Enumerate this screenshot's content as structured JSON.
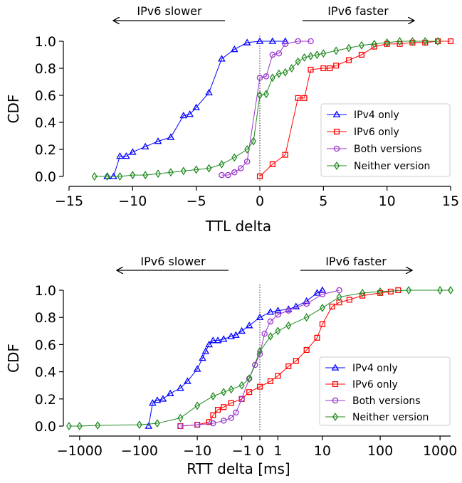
{
  "chart_data": [
    {
      "type": "line",
      "xlabel": "TTL delta",
      "ylabel": "CDF",
      "xlim": [
        -15,
        15
      ],
      "ylim": [
        0,
        1.0
      ],
      "xscale": "linear",
      "xticks": [
        -15,
        -10,
        -5,
        0,
        5,
        10,
        15
      ],
      "xtick_labels": [
        "−15",
        "−10",
        "−5",
        "0",
        "5",
        "10",
        "15"
      ],
      "yticks": [
        0.0,
        0.2,
        0.4,
        0.6,
        0.8,
        1.0
      ],
      "ytick_labels": [
        "0.0",
        "0.2",
        "0.4",
        "0.6",
        "0.8",
        "1.0"
      ],
      "reference_line_x": 0,
      "annotations": [
        {
          "text": "IPv6 slower",
          "arrow": "left"
        },
        {
          "text": "IPv6 faster",
          "arrow": "right"
        }
      ],
      "legend_position": "lower-right",
      "series": [
        {
          "name": "IPv4 only",
          "color": "#0000ff",
          "marker": "triangle",
          "x": [
            -12,
            -11.5,
            -11,
            -10.5,
            -10,
            -9,
            -8,
            -7,
            -6,
            -5.5,
            -5,
            -4,
            -3,
            -2,
            -1,
            0,
            1,
            2
          ],
          "y": [
            0.0,
            0.0,
            0.15,
            0.15,
            0.18,
            0.22,
            0.26,
            0.29,
            0.45,
            0.46,
            0.51,
            0.62,
            0.87,
            0.94,
            0.99,
            1.0,
            1.0,
            1.0
          ]
        },
        {
          "name": "IPv6 only",
          "color": "#ff0000",
          "marker": "square",
          "x": [
            0,
            1,
            2,
            3,
            3.5,
            4,
            5,
            5.5,
            6,
            7,
            8,
            9,
            10,
            11,
            12,
            13,
            14,
            15
          ],
          "y": [
            0.0,
            0.09,
            0.16,
            0.58,
            0.58,
            0.79,
            0.8,
            0.8,
            0.82,
            0.86,
            0.9,
            0.96,
            0.98,
            0.98,
            0.99,
            0.99,
            1.0,
            1.0
          ]
        },
        {
          "name": "Both versions",
          "color": "#9933cc",
          "marker": "circle",
          "x": [
            -3,
            -2.5,
            -2,
            -1.5,
            -1,
            0,
            0.5,
            1,
            1.5,
            2,
            3,
            4
          ],
          "y": [
            0.01,
            0.01,
            0.03,
            0.06,
            0.11,
            0.73,
            0.74,
            0.9,
            0.91,
            0.98,
            1.0,
            1.0
          ],
          "x_extra": [],
          "y_extra": []
        },
        {
          "name": "Neither version",
          "color": "#228b22",
          "marker": "diamond",
          "x": [
            -13,
            -12,
            -11,
            -10,
            -9,
            -8,
            -7,
            -6,
            -5,
            -4,
            -3,
            -2,
            -1,
            -0.5,
            0,
            0.5,
            1,
            1.5,
            2,
            2.5,
            3,
            3.5,
            4,
            4.5,
            5,
            6,
            7,
            8,
            9,
            10,
            11,
            12,
            13,
            14
          ],
          "y": [
            0.0,
            0.0,
            0.0,
            0.01,
            0.01,
            0.02,
            0.03,
            0.04,
            0.05,
            0.06,
            0.09,
            0.14,
            0.2,
            0.26,
            0.6,
            0.61,
            0.73,
            0.76,
            0.77,
            0.8,
            0.85,
            0.88,
            0.89,
            0.9,
            0.91,
            0.93,
            0.95,
            0.97,
            0.98,
            0.99,
            1.0,
            1.0,
            1.0,
            1.0
          ]
        }
      ]
    },
    {
      "type": "line",
      "xlabel": "RTT delta [ms]",
      "ylabel": "CDF",
      "xlim": [
        -1500,
        1500
      ],
      "ylim": [
        0,
        1.0
      ],
      "xscale": "symlog",
      "xticks": [
        -1000,
        -100,
        -10,
        -1,
        0,
        1,
        10,
        100,
        1000
      ],
      "xtick_labels": [
        "−1000",
        "−100",
        "−10",
        "−1",
        "0",
        "1",
        "10",
        "100",
        "1000"
      ],
      "yticks": [
        0.0,
        0.2,
        0.4,
        0.6,
        0.8,
        1.0
      ],
      "ytick_labels": [
        "0.0",
        "0.2",
        "0.4",
        "0.6",
        "0.8",
        "1.0"
      ],
      "reference_line_x": 0,
      "annotations": [
        {
          "text": "IPv6 slower",
          "arrow": "left"
        },
        {
          "text": "IPv6 faster",
          "arrow": "right"
        }
      ],
      "legend_position": "lower-right",
      "series": [
        {
          "name": "IPv4 only",
          "color": "#0000ff",
          "marker": "triangle",
          "x": [
            -70,
            -60,
            -50,
            -40,
            -30,
            -20,
            -15,
            -10,
            -8,
            -7,
            -6,
            -5,
            -4,
            -3,
            -2,
            -1.5,
            -1,
            -0.5,
            0,
            0.5,
            1,
            2,
            3,
            5,
            8,
            10
          ],
          "y": [
            0.0,
            0.17,
            0.19,
            0.2,
            0.24,
            0.28,
            0.33,
            0.42,
            0.5,
            0.55,
            0.6,
            0.63,
            0.63,
            0.64,
            0.66,
            0.67,
            0.7,
            0.74,
            0.8,
            0.84,
            0.85,
            0.86,
            0.88,
            0.92,
            0.98,
            1.0
          ]
        },
        {
          "name": "IPv6 only",
          "color": "#ff0000",
          "marker": "square",
          "x": [
            -20,
            -10,
            -6,
            -5,
            -4,
            -3,
            -2,
            -1,
            -0.5,
            0,
            0.5,
            1,
            2,
            3,
            5,
            8,
            10,
            15,
            20,
            30,
            50,
            100,
            150,
            200
          ],
          "y": [
            0.0,
            0.01,
            0.03,
            0.08,
            0.12,
            0.14,
            0.17,
            0.2,
            0.25,
            0.29,
            0.33,
            0.37,
            0.44,
            0.48,
            0.56,
            0.65,
            0.75,
            0.88,
            0.91,
            0.93,
            0.96,
            0.98,
            0.99,
            1.0
          ]
        },
        {
          "name": "Both versions",
          "color": "#9933cc",
          "marker": "circle",
          "x": [
            -20,
            -10,
            -5,
            -3,
            -2,
            -1.5,
            -1,
            -0.5,
            -0.2,
            0,
            0.2,
            0.5,
            1,
            2,
            5,
            10,
            20
          ],
          "y": [
            0.0,
            0.01,
            0.02,
            0.04,
            0.06,
            0.1,
            0.2,
            0.35,
            0.45,
            0.53,
            0.68,
            0.77,
            0.82,
            0.85,
            0.9,
            0.97,
            1.0
          ]
        },
        {
          "name": "Neither version",
          "color": "#228b22",
          "marker": "diamond",
          "x": [
            -1500,
            -1000,
            -500,
            -100,
            -50,
            -20,
            -10,
            -5,
            -3,
            -2,
            -1,
            -0.5,
            0,
            0.5,
            1,
            2,
            5,
            10,
            20,
            50,
            100,
            300,
            1000,
            1500
          ],
          "y": [
            0.0,
            0.0,
            0.005,
            0.01,
            0.02,
            0.06,
            0.15,
            0.22,
            0.25,
            0.27,
            0.3,
            0.35,
            0.55,
            0.66,
            0.7,
            0.74,
            0.8,
            0.87,
            0.95,
            0.98,
            0.99,
            1.0,
            1.0,
            1.0
          ]
        }
      ]
    }
  ]
}
